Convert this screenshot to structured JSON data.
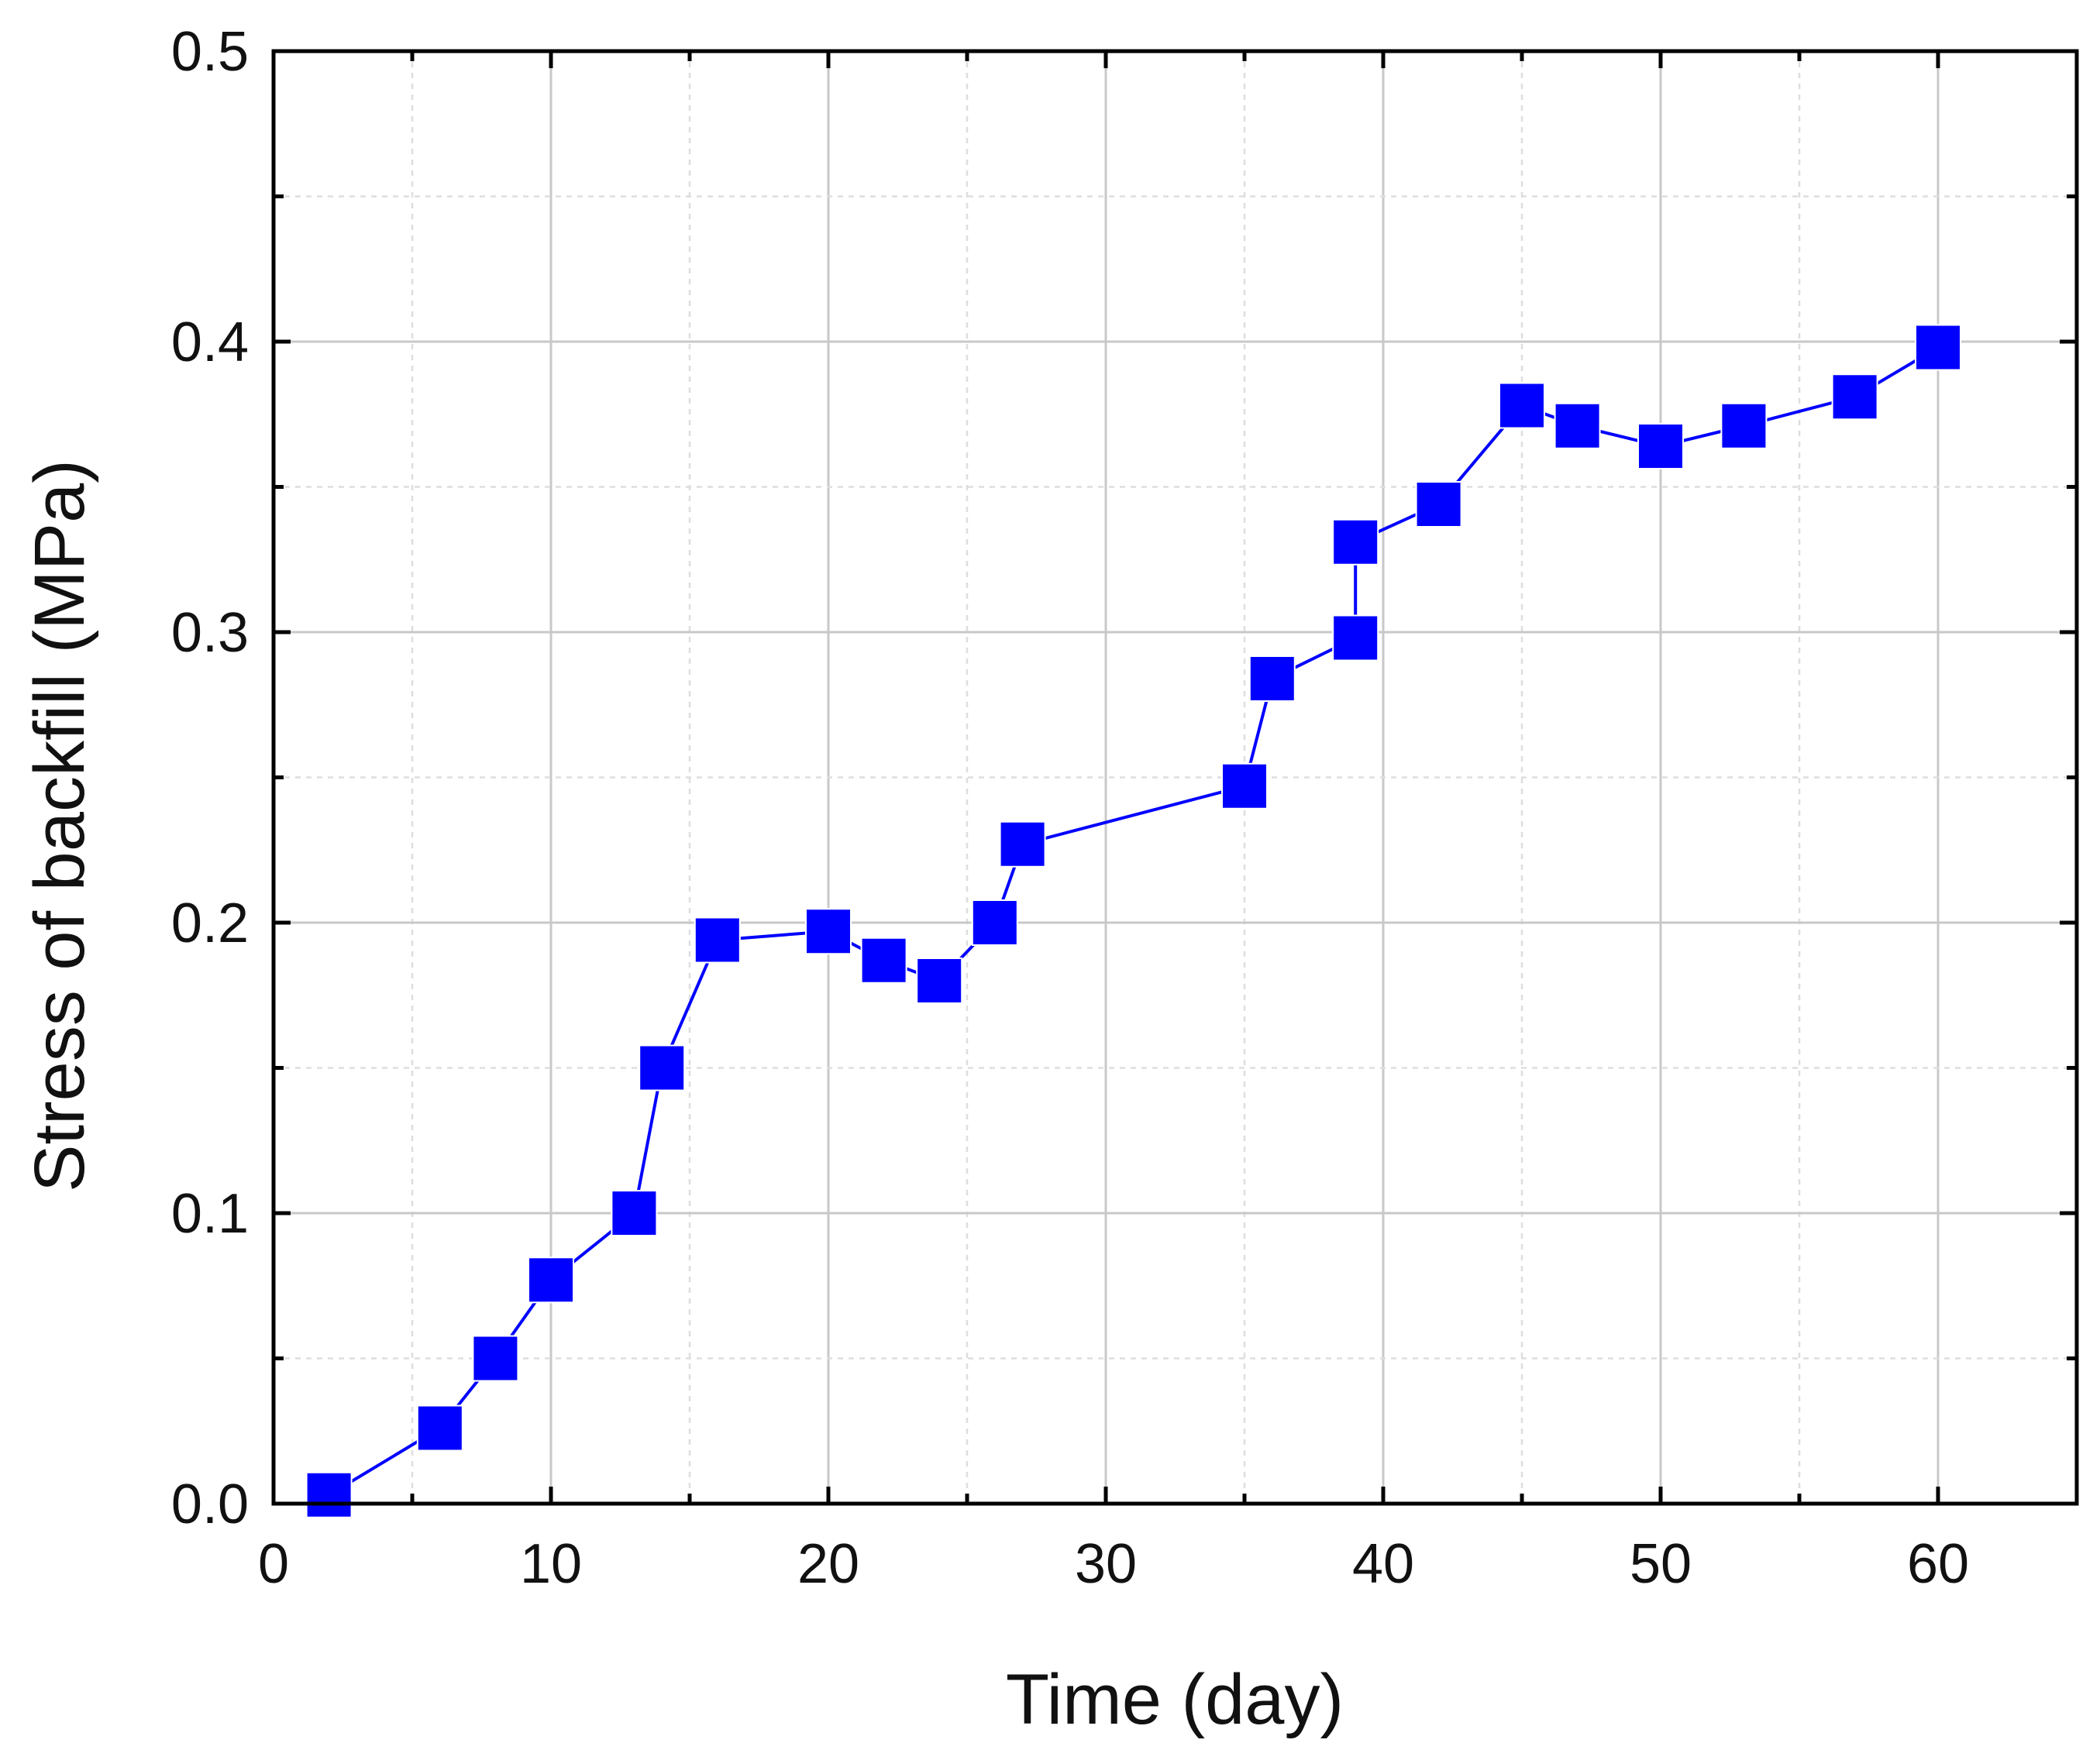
{
  "chart_data": {
    "type": "line",
    "title": "",
    "xlabel": "Time (day)",
    "ylabel": "Stress of backfill (MPa)",
    "xlim": [
      0,
      65
    ],
    "ylim": [
      0,
      0.5
    ],
    "x_ticks": [
      0,
      10,
      20,
      30,
      40,
      50,
      60
    ],
    "x_tick_labels": [
      "0",
      "10",
      "20",
      "30",
      "40",
      "50",
      "60"
    ],
    "y_ticks": [
      0,
      0.1,
      0.2,
      0.3,
      0.4,
      0.5
    ],
    "y_tick_labels": [
      "0.0",
      "0.1",
      "0.2",
      "0.3",
      "0.4",
      "0.5"
    ],
    "x_minor_step": 5,
    "y_minor_step": 0.05,
    "grid": true,
    "legend": "none",
    "marker": "square",
    "series_color": "#0000ff",
    "series": [
      {
        "x": [
          2,
          6,
          8,
          10,
          13,
          14,
          16,
          20,
          22,
          24,
          26,
          27,
          35,
          36,
          39,
          39,
          42,
          45,
          47,
          50,
          53,
          57,
          60
        ],
        "y": [
          0.003,
          0.026,
          0.05,
          0.077,
          0.1,
          0.15,
          0.194,
          0.197,
          0.187,
          0.18,
          0.2,
          0.227,
          0.247,
          0.284,
          0.298,
          0.331,
          0.344,
          0.378,
          0.371,
          0.364,
          0.371,
          0.381,
          0.398
        ]
      }
    ]
  }
}
